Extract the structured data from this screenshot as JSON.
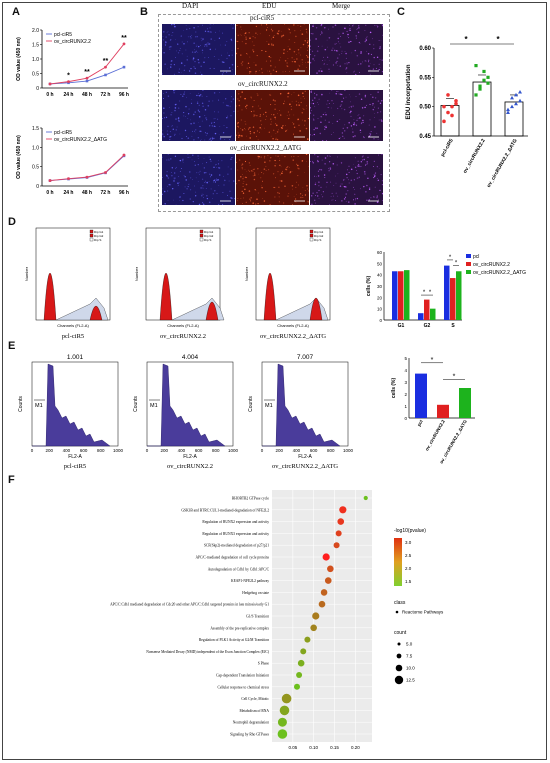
{
  "panels": {
    "a": "A",
    "b": "B",
    "c": "C",
    "d": "D",
    "e": "E",
    "f": "F"
  },
  "panelA": {
    "chart_data": [
      {
        "type": "line",
        "ylabel": "OD value (450 nm)",
        "categories": [
          "0 h",
          "24 h",
          "48 h",
          "72 h",
          "96 h"
        ],
        "yticks": [
          "0",
          "0.5",
          "1.0",
          "1.5",
          "2.0"
        ],
        "ylim": [
          0,
          2.0
        ],
        "series": [
          {
            "name": "pcl-ciR5",
            "values": [
              0.14,
              0.18,
              0.24,
              0.45,
              0.72
            ],
            "color": "#5b6fd6"
          },
          {
            "name": "ov_circRUNX2.2",
            "values": [
              0.14,
              0.22,
              0.34,
              0.72,
              1.52
            ],
            "color": "#e04060"
          }
        ],
        "annotations": [
          "*",
          "**",
          "**",
          "**"
        ]
      },
      {
        "type": "line",
        "ylabel": "OD value (450 nm)",
        "categories": [
          "0 h",
          "24 h",
          "48 h",
          "72 h",
          "96 h"
        ],
        "yticks": [
          "0",
          "0.5",
          "1.0",
          "1.5"
        ],
        "ylim": [
          0,
          1.5
        ],
        "series": [
          {
            "name": "pcl-ciR5",
            "values": [
              0.14,
              0.18,
              0.22,
              0.34,
              0.78
            ],
            "color": "#5b6fd6"
          },
          {
            "name": "ov_circRUNX2.2_ΔATG",
            "values": [
              0.14,
              0.19,
              0.23,
              0.35,
              0.8
            ],
            "color": "#e04060"
          }
        ]
      }
    ]
  },
  "panelB": {
    "headers": [
      "DAPI",
      "EDU",
      "Merge"
    ],
    "rows": [
      "pcl-ciR5",
      "ov_circRUNX2.2",
      "ov_circRUNX2.2_ΔATG"
    ],
    "colors": {
      "dapi": "#1c1760",
      "edu": "#5a1208",
      "merge": "#2a1240"
    }
  },
  "panelC": {
    "chart_data": {
      "type": "bar",
      "ylabel": "EDU incorportation",
      "categories": [
        "pcl-ciR5",
        "ov_circRUNX2.2",
        "ov_circRUNX2.2_ΔATG"
      ],
      "values": [
        0.502,
        0.542,
        0.508
      ],
      "ylim": [
        0.45,
        0.6
      ],
      "yticks": [
        "0.45",
        "0.50",
        "0.55",
        "0.60"
      ],
      "colors": [
        "#e33",
        "#2a2",
        "#3355cc"
      ],
      "points": [
        [
          0.475,
          0.49,
          0.5,
          0.51,
          0.5,
          0.52,
          0.485,
          0.505
        ],
        [
          0.52,
          0.535,
          0.56,
          0.55,
          0.57,
          0.53,
          0.545,
          0.54
        ],
        [
          0.49,
          0.5,
          0.52,
          0.51,
          0.495,
          0.515,
          0.505,
          0.525
        ]
      ],
      "significance": [
        "*",
        "*"
      ]
    }
  },
  "panelD": {
    "histograms": [
      {
        "label": "pcl-ciR5",
        "legend": [
          "Dip G1",
          "Dip G2",
          "Dip S"
        ]
      },
      {
        "label": "ov_circRUNX2.2",
        "legend": [
          "Dip G1",
          "Dip G2",
          "Dip S"
        ]
      },
      {
        "label": "ov_circRUNX2.2_ΔATG",
        "legend": [
          "Dip G1",
          "Dip G2",
          "Dip S"
        ]
      }
    ],
    "axis": {
      "xlabel": "Channels (FL2-A)",
      "ylabel": "Number"
    },
    "chart_data": {
      "type": "bar",
      "ylabel": "cells (%)",
      "categories": [
        "G1",
        "G2",
        "S"
      ],
      "yticks": [
        "0",
        "10",
        "20",
        "30",
        "40",
        "50",
        "60"
      ],
      "ylim": [
        0,
        60
      ],
      "series": [
        {
          "name": "pcl",
          "values": [
            43,
            6,
            48
          ],
          "color": "#1a2ee0"
        },
        {
          "name": "ov_circRUNX2.2",
          "values": [
            43,
            18,
            37
          ],
          "color": "#e02020"
        },
        {
          "name": "ov_circRUNX2.2_ΔATG",
          "values": [
            44,
            10,
            43
          ],
          "color": "#1db31d"
        }
      ],
      "significance": [
        "*",
        "*",
        "*",
        "*"
      ]
    }
  },
  "panelE": {
    "histograms": [
      {
        "value": "1.001",
        "label": "pcl-ciR5",
        "gate": "M1"
      },
      {
        "value": "4.004",
        "label": "ov_circRUNX2.2",
        "gate": "M1"
      },
      {
        "value": "7.007",
        "label": "ov_circRUNX2.2_ΔATG",
        "gate": "M1"
      }
    ],
    "axis": {
      "xlabel": "FL2-A",
      "ylabel": "Counts",
      "xticks": [
        "0",
        "200",
        "400",
        "600",
        "800",
        "1000"
      ]
    },
    "chart_data": {
      "type": "bar",
      "ylabel": "cells (%)",
      "categories": [
        "pcl",
        "ov_circRUNX2.2",
        "ov_circRUNX2.2_ΔATG"
      ],
      "values": [
        3.7,
        1.1,
        2.5
      ],
      "yticks": [
        "0",
        "1",
        "2",
        "3",
        "4",
        "5"
      ],
      "ylim": [
        0,
        5
      ],
      "colors": [
        "#1a2ee0",
        "#e02020",
        "#1db31d"
      ],
      "significance": [
        "*",
        "*"
      ]
    }
  },
  "panelF": {
    "chart_data": {
      "type": "scatter",
      "pathways": [
        "RHOBTB2 GTPase cycle",
        "GSK3B and BTRC:CUL1-mediated-degradation of NFE2L2",
        "Regulation of RUNX2 expression and activity",
        "Regulation of RUNX3 expression and activity",
        "SCF(Skp2)-mediated degradation of p27/p21",
        "APC/C-mediated degradation of cell cycle proteins",
        "Autodegradation of Cdh1 by Cdh1:APC/C",
        "KEAP1-NFE2L2 pathway",
        "Hedgehog on state",
        "APC/C:Cdh1 mediated degradation of Cdc20 and other APC/C:Cdh1 targeted proteins in late mitosis/early G1",
        "G1/S Transition",
        "Assembly of the pre-replicative complex",
        "Regulation of PLK1 Activity at G2/M Transition",
        "Nonsense Mediated Decay (NMD) independent of the Exon Junction Complex (EJC)",
        "S Phase",
        "Cap-dependent Translation Initiation",
        "Cellular response to chemical stress",
        "Cell Cycle, Mitotic",
        "Metabolism of RNA",
        "Neutrophil degranulation",
        "Signaling by Rho GTPases"
      ],
      "ratio": [
        0.225,
        0.17,
        0.165,
        0.16,
        0.155,
        0.13,
        0.14,
        0.135,
        0.125,
        0.12,
        0.105,
        0.1,
        0.085,
        0.075,
        0.07,
        0.065,
        0.06,
        0.035,
        0.03,
        0.025,
        0.025
      ],
      "logp": [
        1.6,
        3.3,
        3.2,
        3.1,
        3.0,
        3.5,
        2.9,
        2.8,
        2.7,
        2.6,
        2.4,
        2.3,
        2.0,
        1.9,
        1.8,
        1.7,
        1.6,
        2.1,
        1.9,
        1.7,
        1.6
      ],
      "count": [
        3,
        8,
        7,
        6,
        6,
        8,
        7,
        7,
        7,
        7,
        8,
        7,
        6,
        6,
        7,
        6,
        6,
        12,
        12,
        11,
        12
      ],
      "xticks": [
        "0.05",
        "0.10",
        "0.15",
        "0.20"
      ],
      "xlim": [
        0.0,
        0.24
      ],
      "legend": {
        "color_title": "-log10(pvalue)",
        "color_ticks": [
          "3.0",
          "2.5",
          "2.0",
          "1.5"
        ],
        "class_title": "class",
        "class_item": "Reactome Pathways",
        "count_title": "count",
        "count_items": [
          "5.0",
          "7.5",
          "10.0",
          "12.5"
        ]
      }
    }
  }
}
